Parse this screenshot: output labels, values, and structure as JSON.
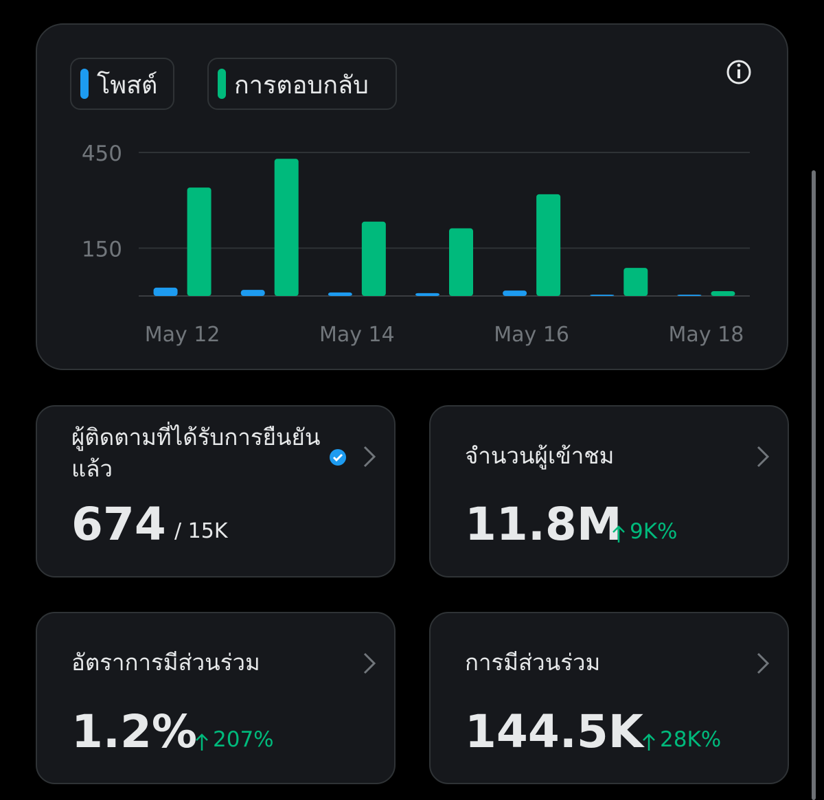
{
  "chart_data": {
    "type": "bar",
    "categories": [
      "May 12",
      null,
      "May 14",
      null,
      "May 16",
      null,
      "May 18"
    ],
    "series": [
      {
        "name": "โพสต์",
        "color": "#1d9bf0",
        "values": [
          26,
          19,
          11,
          9,
          17,
          4,
          4
        ]
      },
      {
        "name": "การตอบกลับ",
        "color": "#00ba7c",
        "values": [
          340,
          430,
          233,
          212,
          319,
          88,
          15
        ]
      }
    ],
    "ylim": [
      0,
      450
    ],
    "yticks": [
      150,
      450
    ],
    "grid": true
  },
  "cards": [
    {
      "title": "ผู้ติดตามที่ได้รับการยืนยันแล้ว",
      "value": "674",
      "total": "/ 15K"
    },
    {
      "title": "จำนวนผู้เข้าชม",
      "value": "11.8M",
      "change": "9K%"
    },
    {
      "title": "อัตราการมีส่วนร่วม",
      "value": "1.2%",
      "change": "207%"
    },
    {
      "title": "การมีส่วนร่วม",
      "value": "144.5K",
      "change": "28K%"
    }
  ]
}
